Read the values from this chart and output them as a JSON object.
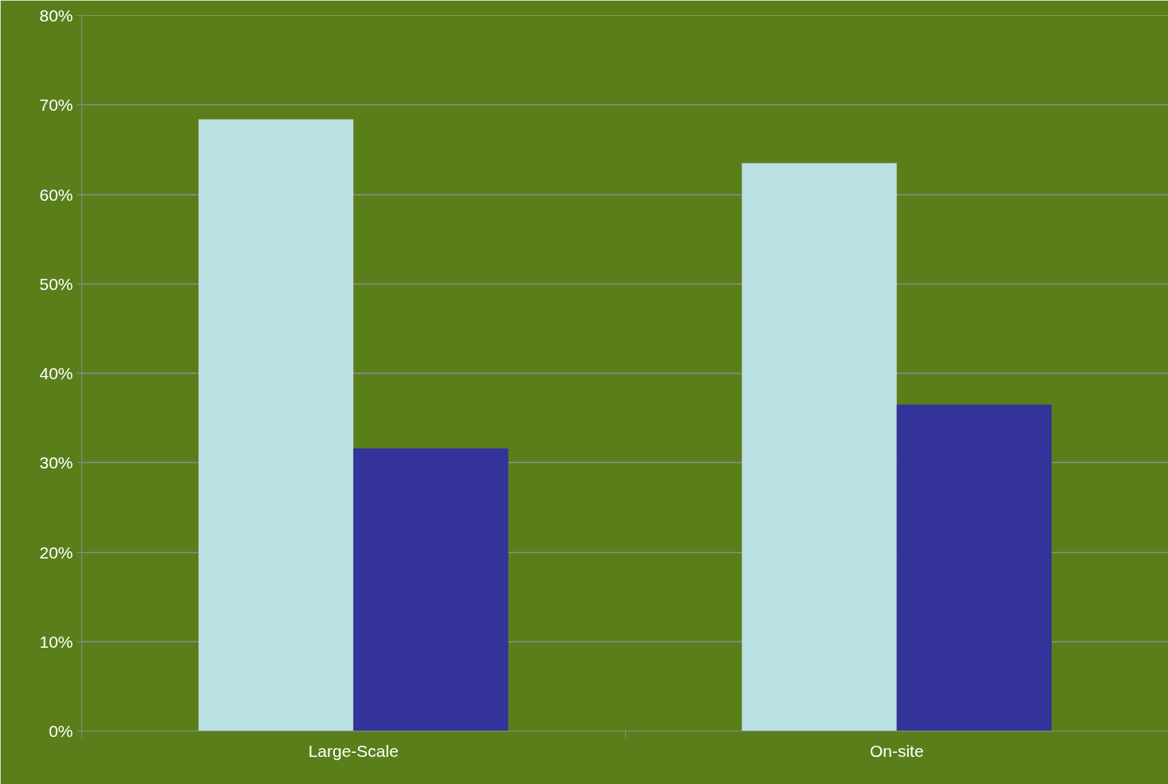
{
  "chart_data": {
    "type": "bar",
    "categories": [
      "Large-Scale",
      "On-site"
    ],
    "series": [
      {
        "color": "#bae0e3",
        "values": [
          68.4,
          63.5
        ]
      },
      {
        "color": "#333399",
        "values": [
          31.6,
          36.5
        ]
      }
    ],
    "ylim": [
      0,
      80
    ],
    "yticks": [
      {
        "value": 0,
        "label": "0%"
      },
      {
        "value": 10,
        "label": "10%"
      },
      {
        "value": 20,
        "label": "20%"
      },
      {
        "value": 30,
        "label": "30%"
      },
      {
        "value": 40,
        "label": "40%"
      },
      {
        "value": 50,
        "label": "50%"
      },
      {
        "value": 60,
        "label": "60%"
      },
      {
        "value": 70,
        "label": "70%"
      },
      {
        "value": 80,
        "label": "80%"
      }
    ],
    "grid": "y"
  }
}
